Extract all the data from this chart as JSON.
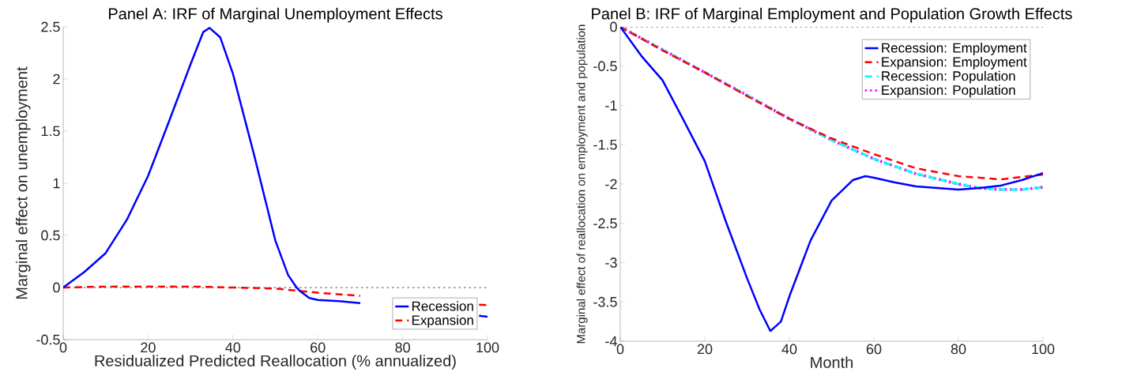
{
  "chart_data": [
    {
      "type": "line",
      "title": "Panel A: IRF of Marginal Unemployment Effects",
      "xlabel": "Residualized Predicted Reallocation (% annualized)",
      "ylabel": "Marginal effect on unemployment",
      "xlim": [
        0,
        100
      ],
      "ylim": [
        -0.5,
        2.5
      ],
      "xticks": [
        0,
        20,
        40,
        60,
        80,
        100
      ],
      "yticks": [
        -0.5,
        0,
        0.5,
        1,
        1.5,
        2,
        2.5
      ],
      "legend": "bottom right",
      "series": [
        {
          "name": "Recession",
          "color": "#0000ff",
          "line_style": "solid",
          "x": [
            0,
            5,
            10,
            15,
            20,
            25,
            30,
            33,
            34.5,
            37,
            40,
            45,
            50,
            53,
            55,
            56,
            58,
            60,
            65,
            70,
            72,
            96,
            98,
            100
          ],
          "values": [
            0,
            0.15,
            0.33,
            0.65,
            1.07,
            1.6,
            2.14,
            2.45,
            2.49,
            2.4,
            2.05,
            1.27,
            0.45,
            0.12,
            0.0,
            -0.04,
            -0.1,
            -0.12,
            -0.13,
            -0.15,
            null,
            null,
            -0.27,
            -0.28
          ]
        },
        {
          "name": "Expansion",
          "color": "#ff0000",
          "line_style": "dashed",
          "x": [
            0,
            10,
            20,
            30,
            40,
            50,
            55,
            60,
            70,
            72,
            96,
            98,
            100
          ],
          "values": [
            0,
            0.01,
            0.01,
            0.01,
            0.0,
            -0.01,
            -0.03,
            -0.05,
            -0.08,
            null,
            null,
            -0.165,
            -0.17
          ]
        }
      ],
      "ref_lines": [
        {
          "axis": "y",
          "value": 0,
          "color": "#000000",
          "line_style": "dotted"
        }
      ]
    },
    {
      "type": "line",
      "title": "Panel B: IRF of Marginal Employment and Population Growth Effects",
      "xlabel": "Month",
      "ylabel": "Marginal effect of reallocation on employment and population",
      "xlim": [
        0,
        100
      ],
      "ylim": [
        -4,
        0
      ],
      "xticks": [
        0,
        20,
        40,
        60,
        80,
        100
      ],
      "yticks": [
        -4,
        -3.5,
        -3,
        -2.5,
        -2,
        -1.5,
        -1,
        -0.5,
        0
      ],
      "legend": "top right",
      "series": [
        {
          "name": "Recession: Employment",
          "color": "#0000ff",
          "line_style": "solid",
          "x": [
            0,
            5,
            10,
            15,
            20,
            25,
            30,
            33,
            35.5,
            38,
            40,
            45,
            50,
            55,
            58,
            60,
            65,
            70,
            80,
            85,
            90,
            95,
            100
          ],
          "values": [
            0,
            -0.37,
            -0.68,
            -1.19,
            -1.71,
            -2.48,
            -3.2,
            -3.6,
            -3.87,
            -3.75,
            -3.43,
            -2.72,
            -2.21,
            -1.95,
            -1.9,
            -1.92,
            -1.98,
            -2.03,
            -2.07,
            -2.05,
            -2.02,
            -1.95,
            -1.86
          ]
        },
        {
          "name": "Expansion: Employment",
          "color": "#ff0000",
          "line_style": "dashed",
          "x": [
            0,
            10,
            20,
            30,
            40,
            50,
            60,
            70,
            80,
            90,
            100
          ],
          "values": [
            0,
            -0.3,
            -0.58,
            -0.88,
            -1.17,
            -1.42,
            -1.62,
            -1.8,
            -1.9,
            -1.94,
            -1.88
          ]
        },
        {
          "name": "Recession: Population",
          "color": "#00ffff",
          "line_style": "dashed",
          "x": [
            0,
            10,
            20,
            30,
            40,
            50,
            60,
            70,
            80,
            85,
            90,
            95,
            100
          ],
          "values": [
            0,
            -0.29,
            -0.58,
            -0.87,
            -1.17,
            -1.44,
            -1.68,
            -1.87,
            -2.0,
            -2.05,
            -2.07,
            -2.07,
            -2.04
          ]
        },
        {
          "name": "Expansion: Population",
          "color": "#ff00ff",
          "line_style": "dotted",
          "x": [
            0,
            10,
            20,
            30,
            40,
            50,
            60,
            70,
            80,
            85,
            90,
            95,
            100
          ],
          "values": [
            0,
            -0.29,
            -0.58,
            -0.87,
            -1.17,
            -1.44,
            -1.68,
            -1.87,
            -2.0,
            -2.05,
            -2.07,
            -2.07,
            -2.04
          ]
        }
      ],
      "ref_lines": [
        {
          "axis": "y",
          "value": 0,
          "color": "#000000",
          "line_style": "dotted"
        }
      ]
    }
  ]
}
